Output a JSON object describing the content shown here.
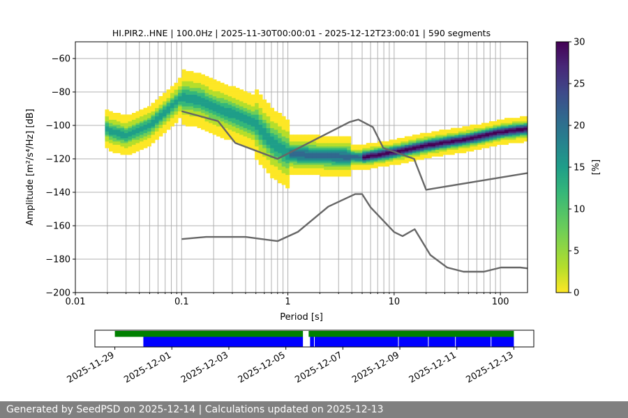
{
  "chart_data": [
    {
      "type": "heatmap",
      "title": "HI.PIR2..HNE | 100.0Hz | 2025-11-30T00:00:01 - 2025-12-12T23:00:01 | 590 segments",
      "xlabel": "Period [s]",
      "ylabel": "Amplitude [m²/s⁴/Hz] [dB]",
      "x_scale": "log",
      "xlim": [
        0.01,
        180
      ],
      "ylim": [
        -200,
        -50
      ],
      "x_ticks": [
        "0.01",
        "0.1",
        "1",
        "10",
        "100"
      ],
      "y_ticks": [
        "−200",
        "−180",
        "−160",
        "−140",
        "−120",
        "−100",
        "−80",
        "−60"
      ],
      "grid": true,
      "density_mode": [
        {
          "x": 0.02,
          "y": -103
        },
        {
          "x": 0.03,
          "y": -106
        },
        {
          "x": 0.05,
          "y": -100
        },
        {
          "x": 0.07,
          "y": -92
        },
        {
          "x": 0.1,
          "y": -83
        },
        {
          "x": 0.15,
          "y": -85
        },
        {
          "x": 0.2,
          "y": -89
        },
        {
          "x": 0.3,
          "y": -93
        },
        {
          "x": 0.5,
          "y": -99
        },
        {
          "x": 0.7,
          "y": -110
        },
        {
          "x": 1,
          "y": -117
        },
        {
          "x": 2,
          "y": -118
        },
        {
          "x": 5,
          "y": -119
        },
        {
          "x": 10,
          "y": -116
        },
        {
          "x": 20,
          "y": -112
        },
        {
          "x": 50,
          "y": -108
        },
        {
          "x": 100,
          "y": -104
        },
        {
          "x": 180,
          "y": -102
        }
      ],
      "high_noise_model": [
        {
          "x": 0.1,
          "y": -91.5
        },
        {
          "x": 0.22,
          "y": -97.4
        },
        {
          "x": 0.32,
          "y": -110.5
        },
        {
          "x": 0.8,
          "y": -120
        },
        {
          "x": 3.8,
          "y": -98
        },
        {
          "x": 4.6,
          "y": -96.5
        },
        {
          "x": 6.3,
          "y": -101
        },
        {
          "x": 7.9,
          "y": -113.5
        },
        {
          "x": 15.4,
          "y": -120
        },
        {
          "x": 20,
          "y": -138.5
        },
        {
          "x": 180,
          "y": -128.5
        }
      ],
      "low_noise_model": [
        {
          "x": 0.1,
          "y": -168
        },
        {
          "x": 0.17,
          "y": -166.7
        },
        {
          "x": 0.4,
          "y": -166.7
        },
        {
          "x": 0.8,
          "y": -169.2
        },
        {
          "x": 1.24,
          "y": -163.7
        },
        {
          "x": 2.4,
          "y": -148.6
        },
        {
          "x": 4.3,
          "y": -141.1
        },
        {
          "x": 5.0,
          "y": -141.1
        },
        {
          "x": 6.0,
          "y": -149
        },
        {
          "x": 10,
          "y": -163.8
        },
        {
          "x": 12,
          "y": -166.2
        },
        {
          "x": 15.6,
          "y": -162.1
        },
        {
          "x": 21.9,
          "y": -177.5
        },
        {
          "x": 31.6,
          "y": -185
        },
        {
          "x": 45,
          "y": -187.5
        },
        {
          "x": 70,
          "y": -187.5
        },
        {
          "x": 101,
          "y": -185
        },
        {
          "x": 154,
          "y": -185
        },
        {
          "x": 180,
          "y": -185.5
        }
      ],
      "colorbar": {
        "label": "[%]",
        "range": [
          0,
          30
        ],
        "ticks": [
          "0",
          "5",
          "10",
          "15",
          "20",
          "25",
          "30"
        ],
        "colormap": "viridis_r"
      }
    },
    {
      "type": "timeline",
      "x_ticks": [
        "2025-11-29",
        "2025-12-01",
        "2025-12-03",
        "2025-12-05",
        "2025-12-07",
        "2025-12-09",
        "2025-12-11",
        "2025-12-13"
      ],
      "xlim_days_from_2025_11_29": [
        -0.7,
        14.7
      ],
      "data_available": [
        [
          0,
          6.6
        ],
        [
          6.8,
          14
        ]
      ],
      "segments_used": [
        [
          1,
          6.6
        ],
        [
          6.85,
          14
        ]
      ],
      "gaps_in_used": [
        7.0,
        9.95,
        11.0,
        11.95,
        13.2
      ],
      "colors": {
        "available": "#008000",
        "used": "#0000ff"
      }
    }
  ],
  "footer": {
    "text": "Generated by SeedPSD on 2025-12-14 | Calculations updated on 2025-12-13"
  }
}
